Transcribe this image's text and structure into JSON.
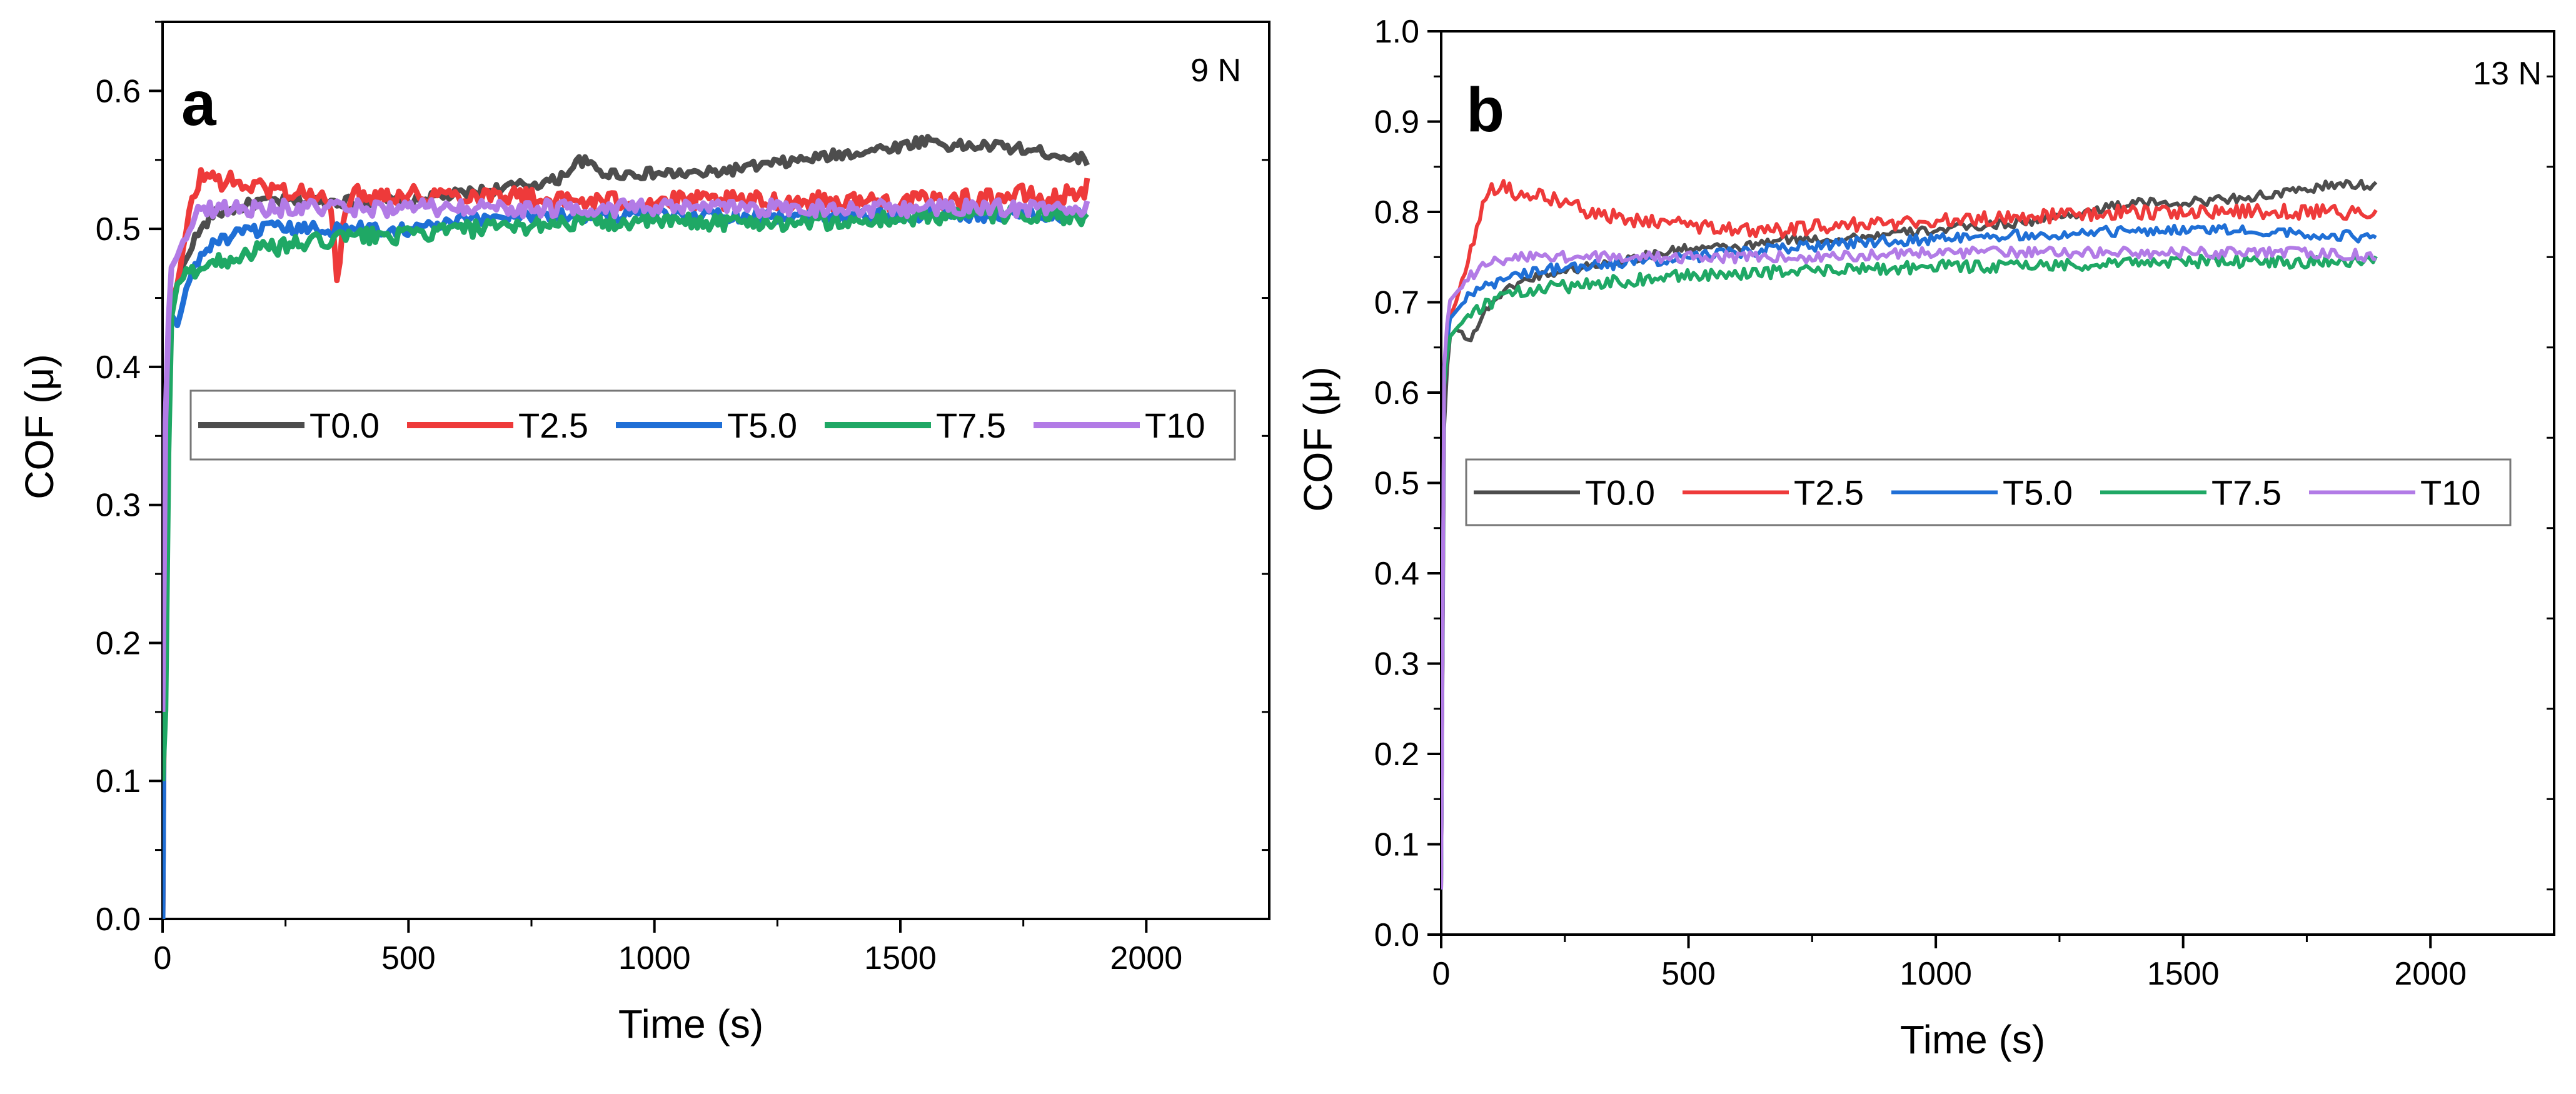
{
  "figure": {
    "panels": [
      "a",
      "b"
    ]
  },
  "colors": {
    "T0.0": "#4d4d4d",
    "T2.5": "#ee3a3a",
    "T5.0": "#1f6fd6",
    "T7.5": "#1fa865",
    "T10": "#b27be6"
  },
  "chart_data": [
    {
      "type": "line",
      "panel_label": "a",
      "annotation": "9 N",
      "xlabel": "Time (s)",
      "ylabel": "COF (μ)",
      "xlim": [
        0,
        2250
      ],
      "ylim": [
        0,
        0.65
      ],
      "xticks": [
        0,
        500,
        1000,
        1500,
        2000
      ],
      "yticks": [
        0.0,
        0.1,
        0.2,
        0.3,
        0.4,
        0.5,
        0.6
      ],
      "xtick_labels": [
        "0",
        "500",
        "1000",
        "1500",
        "2000"
      ],
      "ytick_labels": [
        "0.0",
        "0.1",
        "0.2",
        "0.3",
        "0.4",
        "0.5",
        "0.6"
      ],
      "legend": [
        "T0.0",
        "T2.5",
        "T5.0",
        "T7.5",
        "T10"
      ],
      "legend_position": "middle-top",
      "series": [
        {
          "name": "T0.0",
          "x": [
            0,
            5,
            15,
            30,
            60,
            100,
            150,
            200,
            300,
            400,
            500,
            600,
            700,
            800,
            850,
            900,
            1000,
            1100,
            1200,
            1300,
            1400,
            1500,
            1560,
            1600,
            1700,
            1800,
            1880
          ],
          "y": [
            0.0,
            0.35,
            0.44,
            0.46,
            0.49,
            0.51,
            0.515,
            0.52,
            0.52,
            0.52,
            0.52,
            0.525,
            0.53,
            0.535,
            0.55,
            0.54,
            0.54,
            0.54,
            0.545,
            0.55,
            0.555,
            0.56,
            0.565,
            0.56,
            0.56,
            0.555,
            0.55
          ],
          "noise": 0.004
        },
        {
          "name": "T2.5",
          "x": [
            0,
            5,
            15,
            30,
            60,
            80,
            120,
            200,
            300,
            340,
            355,
            370,
            400,
            500,
            600,
            700,
            800,
            900,
            1000,
            1200,
            1400,
            1600,
            1750,
            1800,
            1880
          ],
          "y": [
            0.0,
            0.3,
            0.44,
            0.46,
            0.52,
            0.54,
            0.535,
            0.53,
            0.525,
            0.52,
            0.46,
            0.52,
            0.525,
            0.525,
            0.525,
            0.525,
            0.52,
            0.52,
            0.52,
            0.52,
            0.52,
            0.52,
            0.525,
            0.52,
            0.53
          ],
          "noise": 0.007
        },
        {
          "name": "T5.0",
          "x": [
            0,
            5,
            15,
            30,
            60,
            100,
            150,
            200,
            300,
            400,
            500,
            600,
            700,
            800,
            1000,
            1200,
            1400,
            1600,
            1800,
            1880
          ],
          "y": [
            0.0,
            0.35,
            0.44,
            0.43,
            0.47,
            0.49,
            0.495,
            0.5,
            0.5,
            0.5,
            0.5,
            0.505,
            0.51,
            0.51,
            0.51,
            0.51,
            0.51,
            0.51,
            0.51,
            0.51
          ],
          "noise": 0.005
        },
        {
          "name": "T7.5",
          "x": [
            0,
            5,
            15,
            30,
            60,
            100,
            150,
            200,
            300,
            400,
            500,
            600,
            700,
            800,
            1000,
            1200,
            1400,
            1600,
            1800,
            1880
          ],
          "y": [
            0.1,
            0.12,
            0.43,
            0.46,
            0.47,
            0.475,
            0.48,
            0.485,
            0.49,
            0.495,
            0.495,
            0.5,
            0.5,
            0.505,
            0.505,
            0.505,
            0.505,
            0.51,
            0.51,
            0.505
          ],
          "noise": 0.006
        },
        {
          "name": "T10",
          "x": [
            0,
            5,
            15,
            30,
            50,
            80,
            120,
            200,
            300,
            400,
            500,
            600,
            700,
            800,
            1000,
            1200,
            1400,
            1600,
            1800,
            1880
          ],
          "y": [
            0.15,
            0.35,
            0.47,
            0.48,
            0.5,
            0.515,
            0.515,
            0.515,
            0.515,
            0.515,
            0.515,
            0.515,
            0.515,
            0.515,
            0.515,
            0.515,
            0.515,
            0.515,
            0.515,
            0.515
          ],
          "noise": 0.006
        }
      ]
    },
    {
      "type": "line",
      "panel_label": "b",
      "annotation": "13 N",
      "xlabel": "Time (s)",
      "ylabel": "COF (μ)",
      "xlim": [
        0,
        2250
      ],
      "ylim": [
        0,
        1.0
      ],
      "xticks": [
        0,
        500,
        1000,
        1500,
        2000
      ],
      "yticks": [
        0.0,
        0.1,
        0.2,
        0.3,
        0.4,
        0.5,
        0.6,
        0.7,
        0.8,
        0.9,
        1.0
      ],
      "xtick_labels": [
        "0",
        "500",
        "1000",
        "1500",
        "2000"
      ],
      "ytick_labels": [
        "0.0",
        "0.1",
        "0.2",
        "0.3",
        "0.4",
        "0.5",
        "0.6",
        "0.7",
        "0.8",
        "0.9",
        "1.0"
      ],
      "legend": [
        "T0.0",
        "T2.5",
        "T5.0",
        "T7.5",
        "T10"
      ],
      "legend_position": "middle-top",
      "series": [
        {
          "name": "T0.0",
          "x": [
            0,
            5,
            15,
            30,
            60,
            100,
            150,
            200,
            300,
            400,
            500,
            600,
            700,
            800,
            1000,
            1200,
            1300,
            1400,
            1500,
            1600,
            1700,
            1800,
            1890
          ],
          "y": [
            0.05,
            0.55,
            0.66,
            0.67,
            0.66,
            0.7,
            0.72,
            0.73,
            0.74,
            0.75,
            0.76,
            0.76,
            0.77,
            0.77,
            0.78,
            0.79,
            0.8,
            0.81,
            0.81,
            0.815,
            0.82,
            0.83,
            0.83
          ],
          "noise": 0.005
        },
        {
          "name": "T2.5",
          "x": [
            0,
            5,
            15,
            30,
            60,
            90,
            120,
            150,
            200,
            250,
            300,
            400,
            500,
            600,
            700,
            800,
            1000,
            1200,
            1400,
            1600,
            1800,
            1890
          ],
          "y": [
            0.05,
            0.6,
            0.68,
            0.7,
            0.76,
            0.82,
            0.83,
            0.82,
            0.82,
            0.81,
            0.8,
            0.79,
            0.785,
            0.78,
            0.78,
            0.785,
            0.79,
            0.795,
            0.8,
            0.8,
            0.8,
            0.8
          ],
          "noise": 0.008
        },
        {
          "name": "T5.0",
          "x": [
            0,
            5,
            15,
            30,
            60,
            100,
            150,
            200,
            300,
            400,
            500,
            600,
            700,
            800,
            1000,
            1200,
            1400,
            1600,
            1800,
            1890
          ],
          "y": [
            0.05,
            0.6,
            0.68,
            0.69,
            0.71,
            0.72,
            0.73,
            0.735,
            0.74,
            0.745,
            0.75,
            0.755,
            0.76,
            0.765,
            0.77,
            0.775,
            0.78,
            0.78,
            0.775,
            0.77
          ],
          "noise": 0.006
        },
        {
          "name": "T7.5",
          "x": [
            0,
            5,
            15,
            30,
            60,
            100,
            150,
            200,
            300,
            400,
            500,
            600,
            700,
            800,
            1000,
            1200,
            1400,
            1600,
            1800,
            1890
          ],
          "y": [
            0.05,
            0.6,
            0.66,
            0.67,
            0.69,
            0.7,
            0.71,
            0.715,
            0.72,
            0.725,
            0.73,
            0.73,
            0.735,
            0.735,
            0.74,
            0.74,
            0.745,
            0.745,
            0.745,
            0.745
          ],
          "noise": 0.007
        },
        {
          "name": "T10",
          "x": [
            0,
            5,
            15,
            30,
            60,
            100,
            150,
            200,
            300,
            400,
            500,
            600,
            700,
            800,
            1000,
            1200,
            1400,
            1600,
            1800,
            1890
          ],
          "y": [
            0.05,
            0.62,
            0.7,
            0.71,
            0.73,
            0.745,
            0.75,
            0.75,
            0.75,
            0.75,
            0.75,
            0.75,
            0.75,
            0.75,
            0.755,
            0.755,
            0.755,
            0.755,
            0.755,
            0.75
          ],
          "noise": 0.006
        }
      ]
    }
  ]
}
